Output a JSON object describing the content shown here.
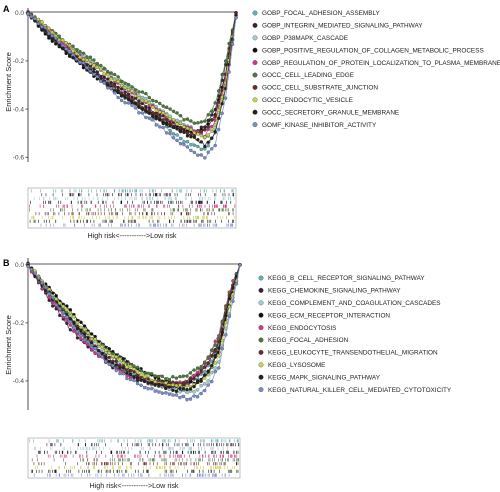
{
  "chart_data": [
    {
      "type": "line",
      "panel": "A",
      "ylabel": "Enrichment Score",
      "ylim": [
        -0.62,
        0.02
      ],
      "yticks": [
        "0.0",
        "-0.2",
        "-0.4",
        "-0.6"
      ],
      "x_caption": "High risk<----------->Low risk",
      "x": [
        0,
        0.05,
        0.1,
        0.15,
        0.2,
        0.25,
        0.3,
        0.35,
        0.4,
        0.45,
        0.5,
        0.55,
        0.6,
        0.65,
        0.7,
        0.75,
        0.8,
        0.85,
        0.9,
        0.95,
        1.0
      ],
      "series": [
        {
          "name": "GOBP_FOCAL_ADHESION_ASSEMBLY",
          "color": "#5fb3b3",
          "values": [
            0,
            -0.05,
            -0.09,
            -0.13,
            -0.16,
            -0.2,
            -0.23,
            -0.27,
            -0.3,
            -0.34,
            -0.37,
            -0.4,
            -0.43,
            -0.46,
            -0.5,
            -0.53,
            -0.55,
            -0.57,
            -0.5,
            -0.3,
            -0.02
          ]
        },
        {
          "name": "GOBP_INTEGRIN_MEDIATED_SIGNALING_PATHWAY",
          "color": "#3b1f3a",
          "values": [
            0,
            -0.04,
            -0.08,
            -0.12,
            -0.15,
            -0.19,
            -0.22,
            -0.26,
            -0.29,
            -0.32,
            -0.35,
            -0.38,
            -0.41,
            -0.43,
            -0.46,
            -0.48,
            -0.5,
            -0.47,
            -0.4,
            -0.22,
            0
          ]
        },
        {
          "name": "GOBP_P38MAPK_CASCADE",
          "color": "#9ccfd8",
          "values": [
            0,
            -0.03,
            -0.07,
            -0.1,
            -0.14,
            -0.17,
            -0.2,
            -0.23,
            -0.26,
            -0.29,
            -0.32,
            -0.35,
            -0.38,
            -0.41,
            -0.44,
            -0.46,
            -0.49,
            -0.52,
            -0.48,
            -0.3,
            -0.02
          ]
        },
        {
          "name": "GOBP_POSITIVE_REGULATION_OF_COLLAGEN_METABOLIC_PROCESS",
          "color": "#111111",
          "values": [
            0,
            -0.05,
            -0.1,
            -0.14,
            -0.18,
            -0.21,
            -0.25,
            -0.28,
            -0.31,
            -0.34,
            -0.37,
            -0.4,
            -0.42,
            -0.45,
            -0.47,
            -0.49,
            -0.5,
            -0.48,
            -0.42,
            -0.25,
            0
          ]
        },
        {
          "name": "GOBP_REGULATION_OF_PROTEIN_LOCALIZATION_TO_PLASMA_MEMBRANE",
          "color": "#d0368a",
          "values": [
            0,
            -0.04,
            -0.08,
            -0.11,
            -0.15,
            -0.18,
            -0.21,
            -0.24,
            -0.27,
            -0.3,
            -0.33,
            -0.36,
            -0.39,
            -0.42,
            -0.45,
            -0.47,
            -0.49,
            -0.51,
            -0.45,
            -0.28,
            -0.01
          ]
        },
        {
          "name": "GOCC_CELL_LEADING_EDGE",
          "color": "#4a7a3a",
          "values": [
            0,
            -0.03,
            -0.06,
            -0.1,
            -0.13,
            -0.16,
            -0.19,
            -0.22,
            -0.25,
            -0.28,
            -0.31,
            -0.33,
            -0.36,
            -0.39,
            -0.41,
            -0.44,
            -0.46,
            -0.45,
            -0.38,
            -0.2,
            0
          ]
        },
        {
          "name": "GOCC_CELL_SUBSTRATE_JUNCTION",
          "color": "#6b2b2b",
          "values": [
            0,
            -0.04,
            -0.09,
            -0.13,
            -0.17,
            -0.2,
            -0.24,
            -0.27,
            -0.3,
            -0.33,
            -0.36,
            -0.39,
            -0.42,
            -0.44,
            -0.47,
            -0.49,
            -0.51,
            -0.49,
            -0.43,
            -0.26,
            0
          ]
        },
        {
          "name": "GOCC_ENDOCYTIC_VESICLE",
          "color": "#c9d64a",
          "values": [
            0,
            -0.03,
            -0.07,
            -0.11,
            -0.14,
            -0.18,
            -0.21,
            -0.24,
            -0.27,
            -0.3,
            -0.33,
            -0.36,
            -0.39,
            -0.42,
            -0.45,
            -0.47,
            -0.5,
            -0.52,
            -0.47,
            -0.29,
            -0.01
          ]
        },
        {
          "name": "GOCC_SECRETORY_GRANULE_MEMBRANE",
          "color": "#222222",
          "values": [
            0,
            -0.05,
            -0.09,
            -0.13,
            -0.17,
            -0.21,
            -0.24,
            -0.28,
            -0.31,
            -0.34,
            -0.37,
            -0.4,
            -0.43,
            -0.46,
            -0.48,
            -0.5,
            -0.52,
            -0.55,
            -0.5,
            -0.32,
            -0.01
          ]
        },
        {
          "name": "GOMF_KINASE_INHIBITOR_ACTIVITY",
          "color": "#7a8fc9",
          "values": [
            0,
            -0.04,
            -0.08,
            -0.12,
            -0.16,
            -0.2,
            -0.24,
            -0.28,
            -0.32,
            -0.36,
            -0.39,
            -0.42,
            -0.45,
            -0.48,
            -0.52,
            -0.55,
            -0.58,
            -0.6,
            -0.55,
            -0.35,
            -0.02
          ]
        }
      ]
    },
    {
      "type": "line",
      "panel": "B",
      "ylabel": "Enrichment Score",
      "ylim": [
        -0.5,
        0.02
      ],
      "yticks": [
        "0.0",
        "-0.2",
        "-0.4"
      ],
      "x_caption": "High risk<----------->Low risk",
      "x": [
        0,
        0.05,
        0.1,
        0.15,
        0.2,
        0.25,
        0.3,
        0.35,
        0.4,
        0.45,
        0.5,
        0.55,
        0.6,
        0.65,
        0.7,
        0.75,
        0.8,
        0.85,
        0.9,
        0.95,
        1.0
      ],
      "series": [
        {
          "name": "KEGG_B_CELL_RECEPTOR_SIGNALING_PATHWAY",
          "color": "#5fb3b3",
          "values": [
            0,
            -0.05,
            -0.1,
            -0.15,
            -0.2,
            -0.24,
            -0.28,
            -0.31,
            -0.34,
            -0.36,
            -0.38,
            -0.4,
            -0.41,
            -0.42,
            -0.42,
            -0.41,
            -0.39,
            -0.35,
            -0.28,
            -0.12,
            0
          ]
        },
        {
          "name": "KEGG_CHEMOKINE_SIGNALING_PATHWAY",
          "color": "#3b1f3a",
          "values": [
            0,
            -0.06,
            -0.12,
            -0.17,
            -0.22,
            -0.26,
            -0.29,
            -0.32,
            -0.35,
            -0.37,
            -0.39,
            -0.4,
            -0.41,
            -0.42,
            -0.42,
            -0.41,
            -0.38,
            -0.34,
            -0.26,
            -0.1,
            0
          ]
        },
        {
          "name": "KEGG_COMPLEMENT_AND_COAGULATION_CASCADES",
          "color": "#9ccfd8",
          "values": [
            0,
            -0.05,
            -0.09,
            -0.14,
            -0.18,
            -0.22,
            -0.26,
            -0.29,
            -0.32,
            -0.35,
            -0.37,
            -0.39,
            -0.41,
            -0.42,
            -0.43,
            -0.44,
            -0.43,
            -0.4,
            -0.33,
            -0.17,
            0
          ]
        },
        {
          "name": "KEGG_ECM_RECEPTOR_INTERACTION",
          "color": "#111111",
          "values": [
            0,
            -0.04,
            -0.08,
            -0.12,
            -0.16,
            -0.2,
            -0.24,
            -0.27,
            -0.3,
            -0.32,
            -0.35,
            -0.37,
            -0.39,
            -0.4,
            -0.41,
            -0.41,
            -0.4,
            -0.37,
            -0.3,
            -0.14,
            0
          ]
        },
        {
          "name": "KEGG_ENDOCYTOSIS",
          "color": "#d0368a",
          "values": [
            0,
            -0.06,
            -0.11,
            -0.16,
            -0.21,
            -0.25,
            -0.29,
            -0.32,
            -0.35,
            -0.37,
            -0.39,
            -0.4,
            -0.41,
            -0.41,
            -0.41,
            -0.4,
            -0.37,
            -0.32,
            -0.24,
            -0.09,
            0
          ]
        },
        {
          "name": "KEGG_FOCAL_ADHESION",
          "color": "#4a7a3a",
          "values": [
            0,
            -0.05,
            -0.1,
            -0.14,
            -0.18,
            -0.22,
            -0.25,
            -0.28,
            -0.31,
            -0.33,
            -0.35,
            -0.37,
            -0.38,
            -0.39,
            -0.39,
            -0.38,
            -0.36,
            -0.32,
            -0.25,
            -0.1,
            0
          ]
        },
        {
          "name": "KEGG_LEUKOCYTE_TRANSENDOTHELIAL_MIGRATION",
          "color": "#6b2b2b",
          "values": [
            0,
            -0.05,
            -0.1,
            -0.15,
            -0.19,
            -0.23,
            -0.27,
            -0.3,
            -0.33,
            -0.35,
            -0.37,
            -0.39,
            -0.4,
            -0.41,
            -0.41,
            -0.4,
            -0.38,
            -0.34,
            -0.27,
            -0.11,
            0
          ]
        },
        {
          "name": "KEGG_LYSOSOME",
          "color": "#c9d64a",
          "values": [
            0,
            -0.04,
            -0.09,
            -0.13,
            -0.17,
            -0.21,
            -0.25,
            -0.28,
            -0.31,
            -0.34,
            -0.36,
            -0.38,
            -0.4,
            -0.41,
            -0.42,
            -0.42,
            -0.41,
            -0.38,
            -0.31,
            -0.15,
            0
          ]
        },
        {
          "name": "KEGG_MAPK_SIGNALING_PATHWAY",
          "color": "#222222",
          "values": [
            0,
            -0.05,
            -0.1,
            -0.15,
            -0.19,
            -0.23,
            -0.27,
            -0.31,
            -0.34,
            -0.36,
            -0.38,
            -0.4,
            -0.41,
            -0.42,
            -0.43,
            -0.43,
            -0.41,
            -0.37,
            -0.29,
            -0.12,
            0
          ]
        },
        {
          "name": "KEGG_NATURAL_KILLER_CELL_MEDIATED_CYTOTOXICITY",
          "color": "#7a8fc9",
          "values": [
            0,
            -0.05,
            -0.1,
            -0.15,
            -0.2,
            -0.24,
            -0.28,
            -0.32,
            -0.35,
            -0.38,
            -0.4,
            -0.42,
            -0.43,
            -0.44,
            -0.45,
            -0.46,
            -0.45,
            -0.42,
            -0.35,
            -0.18,
            0
          ]
        }
      ]
    }
  ]
}
